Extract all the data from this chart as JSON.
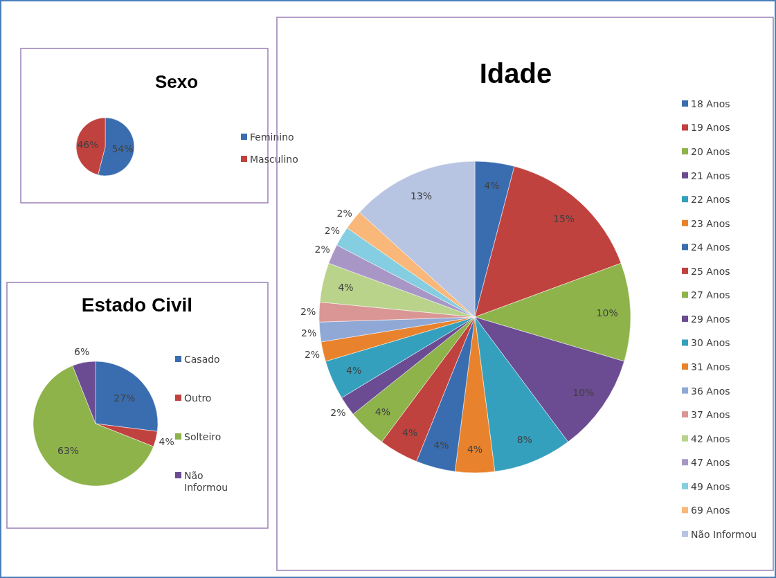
{
  "chart_data": [
    {
      "type": "pie",
      "title": "Sexo",
      "categories": [
        "Feminino",
        "Masculino"
      ],
      "values": [
        54,
        46
      ],
      "colors": [
        "#3a6db0",
        "#c0423e"
      ],
      "value_labels": [
        "54%",
        "46%"
      ],
      "legend": "right"
    },
    {
      "type": "pie",
      "title": "Estado Civil",
      "categories": [
        "Casado",
        "Outro",
        "Solteiro",
        "Não Informou"
      ],
      "values": [
        27,
        4,
        63,
        6
      ],
      "colors": [
        "#3a6db0",
        "#c0423e",
        "#8db34a",
        "#6b4c92"
      ],
      "value_labels": [
        "27%",
        "4%",
        "63%",
        "6%"
      ],
      "legend": "right"
    },
    {
      "type": "pie",
      "title": "Idade",
      "categories": [
        "18 Anos",
        "19 Anos",
        "20 Anos",
        "21 Anos",
        "22 Anos",
        "23 Anos",
        "24 Anos",
        "25 Anos",
        "27 Anos",
        "29 Anos",
        "30 Anos",
        "31 Anos",
        "36 Anos",
        "37 Anos",
        "42 Anos",
        "47 Anos",
        "49 Anos",
        "69 Anos",
        "Não Informou"
      ],
      "values": [
        4,
        15,
        10,
        10,
        8,
        4,
        4,
        4,
        4,
        2,
        4,
        2,
        2,
        2,
        4,
        2,
        2,
        2,
        13
      ],
      "colors": [
        "#3a6db0",
        "#c0423e",
        "#8db34a",
        "#6b4c92",
        "#35a0bd",
        "#e8822c",
        "#3a6db0",
        "#c0423e",
        "#8db34a",
        "#6b4c92",
        "#35a0bd",
        "#e8822c",
        "#8fa8d6",
        "#d99694",
        "#b9d38b",
        "#a896c6",
        "#85cde0",
        "#f9b87a",
        "#b7c4e2"
      ],
      "value_labels": [
        "4%",
        "15%",
        "10%",
        "10%",
        "8%",
        "4%",
        "4%",
        "4%",
        "4%",
        "2%",
        "4%",
        "2%",
        "2%",
        "2%",
        "4%",
        "2%",
        "2%",
        "2%",
        "13%"
      ],
      "legend": "right"
    }
  ]
}
